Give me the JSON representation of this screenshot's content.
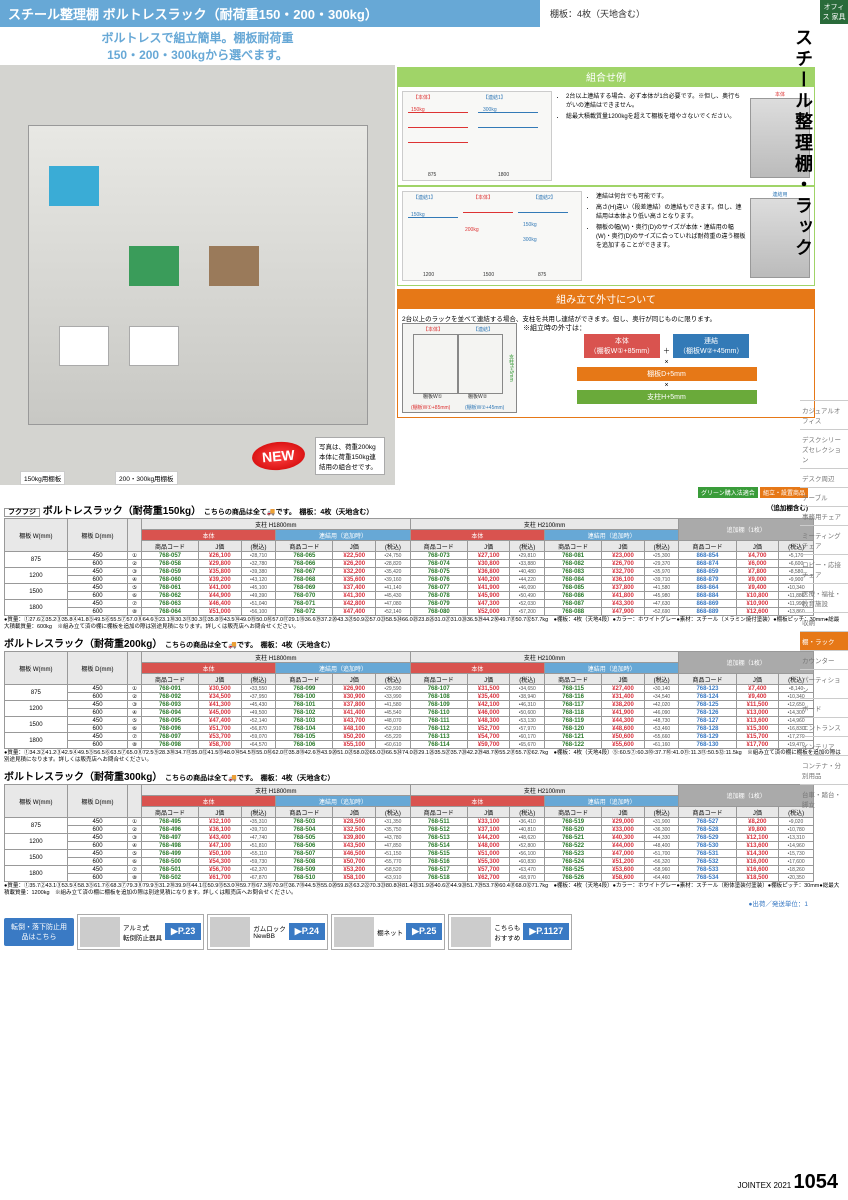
{
  "header": {
    "title": "スチール整理棚 ボルトレスラック（耐荷重150・200・300kg）",
    "shelf_note": "棚板：4枚（天地含む）",
    "subtitle1": "ボルトレスで組立簡単。棚板耐荷重",
    "subtitle2": "150・200・300kgから選べます。"
  },
  "side": {
    "office": "オフィス\n家具",
    "title": "スチール整理棚・ラック",
    "nav": [
      "カジュアルオフィス",
      "デスクシリーズセレクション",
      "デスク周辺",
      "テーブル",
      "事務用チェア",
      "ミーティングチェア",
      "ロビー・応接チェア",
      "医療・福祉・教育施設",
      "収納",
      "棚・ラック",
      "カウンター",
      "パーティション",
      "ボード",
      "エントランス",
      "インテリア",
      "コンテナ・分別用品",
      "台車・踏台・脚立"
    ]
  },
  "photo": {
    "pitch_label": "棚板ピッチ：30mm",
    "label150": "150kg用棚板",
    "label200": "200・300kg用棚板",
    "note": "写真は、荷重200kg本体に荷重150kg連結用の組合せです。",
    "new": "NEW"
  },
  "combo": {
    "header": "組合せ例",
    "body_label": "【本体】",
    "link_label": "【連結1】",
    "link2_label": "【連結2】",
    "load_labels": [
      "150kg",
      "300kg",
      "150kg",
      "200kg"
    ],
    "widths": [
      "875",
      "1200",
      "1500",
      "1800"
    ],
    "bullets": [
      "2台以上連結する場合、必ず本体が1台必要です。※但し、奥行ちがいの連結はできません。",
      "総最大積載質量1200kgを超えて棚板を増やさないでください。",
      "連結は何台でも可能です。",
      "高さ(H)違い（段差連結）の連結もできます。但し、連結用は本体より低い高さとなります。",
      "棚板の幅(W)・奥行(D)のサイズが本体・連結用の幅(W)・奥行(D)のサイズに合っていれば耐荷重の違う棚板を追加することができます。"
    ],
    "rack_labels": [
      "本体",
      "連結用"
    ]
  },
  "assembly": {
    "header": "組み立て外寸について",
    "intro": "2台以上のラックを並べて連結する場合、支柱を共用し連結ができます。但し、奥行が同じものに限ります。",
    "note": "※組立時の外寸は：",
    "red_tag": "本体\n（棚板W①+85mm）",
    "blue_tag": "連結\n（棚板W②+45mm）",
    "orange_tag": "棚板D+5mm",
    "green_tag": "支柱H+5mm",
    "plus": "＋",
    "times": "×",
    "diag_labels": [
      "支柱H+5mm",
      "棚板W①",
      "棚板W②",
      "棚板D+5mm",
      "(棚板W①+85mm)",
      "(棚板W②+45mm)"
    ]
  },
  "tables": [
    {
      "title": "ボルトレスラック（耐荷重150kg）",
      "brand": "フクフジ",
      "sub": "こちらの商品は全て🚚です。　棚板：4枚（天地含む）",
      "extra_note": "（追加棚含む)",
      "col_groups": [
        "支柱 H1800mm",
        "支柱 H2100mm",
        "追加棚（1枚）"
      ],
      "sub_groups": [
        "本体",
        "連結用（追加時）",
        "本体",
        "連結用（追加時）"
      ],
      "headers": [
        "棚板\nW(mm)",
        "棚板\nD(mm)",
        "",
        "商品コード",
        "J価",
        "(税込)",
        "商品コード",
        "J価",
        "(税込)",
        "商品コード",
        "J価",
        "(税込)",
        "商品コード",
        "J価",
        "(税込)",
        "商品コード",
        "J価",
        "(税込)"
      ],
      "rows": [
        [
          "875",
          "450",
          "①",
          "768-057",
          "¥26,100",
          "•28,710",
          "⑨",
          "768-065",
          "¥22,500",
          "•24,750",
          "⑰",
          "768-073",
          "¥27,100",
          "•29,810",
          "㉕",
          "768-081",
          "¥23,000",
          "•25,300",
          "868-854",
          "¥4,700",
          "•5,170"
        ],
        [
          "",
          "600",
          "②",
          "768-058",
          "¥29,800",
          "•32,780",
          "⑩",
          "768-066",
          "¥26,200",
          "•28,820",
          "⑱",
          "768-074",
          "¥30,800",
          "•33,880",
          "㉖",
          "768-082",
          "¥26,700",
          "•29,370",
          "868-874",
          "¥6,000",
          "•6,600"
        ],
        [
          "1200",
          "450",
          "③",
          "768-059",
          "¥35,800",
          "•39,380",
          "⑪",
          "768-067",
          "¥32,200",
          "•35,420",
          "⑲",
          "768-075",
          "¥36,800",
          "•40,480",
          "㉗",
          "768-083",
          "¥32,700",
          "•35,970",
          "868-859",
          "¥7,800",
          "•8,580"
        ],
        [
          "",
          "600",
          "④",
          "768-060",
          "¥39,200",
          "•43,120",
          "⑫",
          "768-068",
          "¥35,600",
          "•39,160",
          "⑳",
          "768-076",
          "¥40,200",
          "•44,220",
          "㉘",
          "768-084",
          "¥36,100",
          "•39,710",
          "868-879",
          "¥9,000",
          "•9,900"
        ],
        [
          "1500",
          "450",
          "⑤",
          "768-061",
          "¥41,000",
          "•45,100",
          "⑬",
          "768-069",
          "¥37,400",
          "•41,140",
          "㉑",
          "768-077",
          "¥41,900",
          "•46,090",
          "㉙",
          "768-085",
          "¥37,800",
          "•41,580",
          "868-864",
          "¥9,400",
          "•10,340"
        ],
        [
          "",
          "600",
          "⑥",
          "768-062",
          "¥44,900",
          "•49,390",
          "⑭",
          "768-070",
          "¥41,300",
          "•45,430",
          "㉒",
          "768-078",
          "¥45,900",
          "•50,490",
          "㉚",
          "768-086",
          "¥41,800",
          "•45,980",
          "868-884",
          "¥10,800",
          "•11,880"
        ],
        [
          "1800",
          "450",
          "⑦",
          "768-063",
          "¥46,400",
          "•51,040",
          "⑮",
          "768-071",
          "¥42,800",
          "•47,080",
          "㉓",
          "768-079",
          "¥47,300",
          "•52,030",
          "㉛",
          "768-087",
          "¥43,300",
          "•47,630",
          "868-869",
          "¥10,900",
          "•11,990"
        ],
        [
          "",
          "600",
          "⑧",
          "768-064",
          "¥51,000",
          "•56,100",
          "⑯",
          "768-072",
          "¥47,400",
          "•52,140",
          "㉔",
          "768-080",
          "¥52,000",
          "•57,200",
          "㉜",
          "768-088",
          "¥47,900",
          "•52,690",
          "868-889",
          "¥12,600",
          "•13,860"
        ]
      ],
      "notes": "●質量：①27.6②35.2③35.8④41.8⑤49.5⑥55.5⑦57.0⑧64.6⑨23.1⑩30.3⑪30.3⑫35.8⑬43.5⑭49.0⑮50.0⑯57.0⑰29.1⑱36.6⑲37.2⑳43.3㉑50.9㉒57.0㉓58.5㉔66.0㉕23.8㉖31.0㉗31.0㉘36.5㉙44.2㉚49.7㉛50.7㉜57.7kg　●棚板：4枚（天地4段）●カラー：ホワイトグレー●素材：スチール（メラミン焼付塗装）●棚板ピッチ：30mm●総最大積載質量：600kg　※組み立て済の棚に棚板を追加の際は別途見積になります。詳しくは販売店へお問合せください。"
    },
    {
      "title": "ボルトレスラック（耐荷重200kg）",
      "sub": "こちらの商品は全て🚚です。　棚板：4枚（天地含む）",
      "rows": [
        [
          "875",
          "450",
          "①",
          "768-091",
          "¥30,500",
          "•33,550",
          "⑨",
          "768-099",
          "¥26,900",
          "•29,590",
          "⑰",
          "768-107",
          "¥31,500",
          "•34,650",
          "㉕",
          "768-115",
          "¥27,400",
          "•30,140",
          "768-123",
          "¥7,400",
          "•8,140"
        ],
        [
          "",
          "600",
          "②",
          "768-092",
          "¥34,500",
          "•37,950",
          "⑩",
          "768-100",
          "¥30,900",
          "•33,990",
          "⑱",
          "768-108",
          "¥35,400",
          "•38,940",
          "㉖",
          "768-116",
          "¥31,400",
          "•34,540",
          "768-124",
          "¥9,400",
          "•10,340"
        ],
        [
          "1200",
          "450",
          "③",
          "768-093",
          "¥41,300",
          "•45,430",
          "⑪",
          "768-101",
          "¥37,800",
          "•41,580",
          "⑲",
          "768-109",
          "¥42,100",
          "•46,310",
          "㉗",
          "768-117",
          "¥38,200",
          "•42,020",
          "768-125",
          "¥11,500",
          "•12,650"
        ],
        [
          "",
          "600",
          "④",
          "768-094",
          "¥45,000",
          "•49,500",
          "⑫",
          "768-102",
          "¥41,400",
          "•45,540",
          "⑳",
          "768-110",
          "¥46,000",
          "•50,600",
          "㉘",
          "768-118",
          "¥41,900",
          "•46,090",
          "768-126",
          "¥13,000",
          "•14,300"
        ],
        [
          "1500",
          "450",
          "⑤",
          "768-095",
          "¥47,400",
          "•52,140",
          "⑬",
          "768-103",
          "¥43,700",
          "•48,070",
          "㉑",
          "768-111",
          "¥48,300",
          "•53,130",
          "㉙",
          "768-119",
          "¥44,300",
          "•48,730",
          "768-127",
          "¥13,600",
          "•14,960"
        ],
        [
          "",
          "600",
          "⑥",
          "768-096",
          "¥51,700",
          "•56,870",
          "⑭",
          "768-104",
          "¥48,100",
          "•52,910",
          "㉒",
          "768-112",
          "¥52,700",
          "•57,970",
          "㉚",
          "768-120",
          "¥48,600",
          "•53,460",
          "768-128",
          "¥15,300",
          "•16,830"
        ],
        [
          "1800",
          "450",
          "⑦",
          "768-097",
          "¥53,700",
          "•59,070",
          "⑮",
          "768-105",
          "¥50,200",
          "•55,220",
          "㉓",
          "768-113",
          "¥54,700",
          "•60,170",
          "㉛",
          "768-121",
          "¥50,600",
          "•55,660",
          "768-129",
          "¥15,700",
          "•17,270"
        ],
        [
          "",
          "600",
          "⑧",
          "768-098",
          "¥58,700",
          "•64,570",
          "⑯",
          "768-106",
          "¥55,100",
          "•60,610",
          "㉔",
          "768-114",
          "¥59,700",
          "•65,670",
          "㉜",
          "768-122",
          "¥55,600",
          "•61,160",
          "768-130",
          "¥17,700",
          "•19,470"
        ]
      ],
      "notes": "●質量：①34.3②41.2③42.5④49.5⑤56.5⑥63.5⑦65.0⑧72.5⑨28.3⑩34.7⑪35.0⑫41.5⑬48.0⑭54.5⑮55.0⑯62.0⑰35.8⑱42.6⑲43.9⑳51.0㉑58.0㉒65.0㉓66.5㉔74.0㉕29.1㉖35.5㉗35.7㉘42.2㉙48.7㉚55.2㉛55.7㉜62.7kg　●棚板：4枚（天地4段）⑤:60.5⑦:60.3⑩:37.7⑩:41.0⑪:11.3⑪:50.5⑫:11.5kg　※組み立て済の棚に棚板を追加の際は別途見積になります。詳しくは販売店へお問合せください。"
    },
    {
      "title": "ボルトレスラック（耐荷重300kg）",
      "sub": "こちらの商品は全て🚚です。　棚板：4枚（天地含む）",
      "rows": [
        [
          "875",
          "450",
          "①",
          "768-495",
          "¥32,100",
          "•35,310",
          "⑨",
          "768-503",
          "¥28,500",
          "•31,350",
          "⑰",
          "768-511",
          "¥33,100",
          "•36,410",
          "㉕",
          "768-519",
          "¥29,000",
          "•31,900",
          "768-527",
          "¥8,200",
          "•9,020"
        ],
        [
          "",
          "600",
          "②",
          "768-496",
          "¥36,100",
          "•39,710",
          "⑩",
          "768-504",
          "¥32,500",
          "•35,750",
          "⑱",
          "768-512",
          "¥37,100",
          "•40,810",
          "㉖",
          "768-520",
          "¥33,000",
          "•36,300",
          "768-528",
          "¥9,800",
          "•10,780"
        ],
        [
          "1200",
          "450",
          "③",
          "768-497",
          "¥43,400",
          "•47,740",
          "⑪",
          "768-505",
          "¥39,800",
          "•43,780",
          "⑲",
          "768-513",
          "¥44,200",
          "•48,620",
          "㉗",
          "768-521",
          "¥40,300",
          "•44,330",
          "768-529",
          "¥12,100",
          "•13,310"
        ],
        [
          "",
          "600",
          "④",
          "768-498",
          "¥47,100",
          "•51,810",
          "⑫",
          "768-506",
          "¥43,500",
          "•47,850",
          "⑳",
          "768-514",
          "¥48,000",
          "•52,800",
          "㉘",
          "768-522",
          "¥44,000",
          "•48,400",
          "768-530",
          "¥13,600",
          "•14,960"
        ],
        [
          "1500",
          "450",
          "⑤",
          "768-499",
          "¥50,100",
          "•55,110",
          "⑬",
          "768-507",
          "¥46,500",
          "•51,150",
          "㉑",
          "768-515",
          "¥51,000",
          "•56,100",
          "㉙",
          "768-523",
          "¥47,000",
          "•51,700",
          "768-531",
          "¥14,300",
          "•15,730"
        ],
        [
          "",
          "600",
          "⑥",
          "768-500",
          "¥54,300",
          "•59,730",
          "⑭",
          "768-508",
          "¥50,700",
          "•55,770",
          "㉒",
          "768-516",
          "¥55,300",
          "•60,830",
          "㉚",
          "768-524",
          "¥51,200",
          "•56,320",
          "768-532",
          "¥16,000",
          "•17,600"
        ],
        [
          "1800",
          "450",
          "⑦",
          "768-501",
          "¥56,700",
          "•62,370",
          "⑮",
          "768-509",
          "¥53,200",
          "•58,520",
          "㉓",
          "768-517",
          "¥57,700",
          "•63,470",
          "㉛",
          "768-525",
          "¥53,600",
          "•58,960",
          "768-533",
          "¥16,600",
          "•18,260"
        ],
        [
          "",
          "600",
          "⑧",
          "768-502",
          "¥61,700",
          "•67,870",
          "⑯",
          "768-510",
          "¥58,100",
          "•63,910",
          "㉔",
          "768-518",
          "¥62,700",
          "•68,970",
          "㉜",
          "768-526",
          "¥58,600",
          "•64,460",
          "768-534",
          "¥18,500",
          "•20,350"
        ]
      ],
      "notes": "●質量：①35.7②43.1③53.5④58.3⑤61.7⑥68.3⑦79.3⑧79.9⑨31.2⑩39.9⑪44.1⑫50.9⑬53.0⑭59.7⑮67.3⑯70.9⑰36.7⑱44.5⑲55.0⑳59.8㉑63.2㉒70.3㉓80.8㉔81.4㉕31.9㉖40.6㉗44.9㉘51.7㉙53.7㉚60.4㉛68.0㉜71.7kg　●棚板：4枚（天地4段）●カラー：ホワイトグレー●素材：スチール（粉体塗装付塗装）●棚板ピッチ：30mm●総最大積載質量：1200kg　※組み立て済の棚に棚板を追加の際は別途見積になります。詳しくは販売店へお問合せください。"
    }
  ],
  "shipping": "●出荷／発送単位：1",
  "badges": {
    "green": "グリーン購入法適合",
    "orange": "組立・設置商品"
  },
  "promo": {
    "tag": "転倒・落下防止用品はこちら",
    "items": [
      {
        "name": "アルミ式\n転倒防止器具",
        "page": "P.23"
      },
      {
        "name": "ガムロック\nNewBB",
        "page": "P.24"
      },
      {
        "name": "棚ネット",
        "page": "P.25"
      },
      {
        "name": "こちらも\nおすすめ",
        "page": "P.1127"
      }
    ]
  },
  "footer": {
    "year": "JOINTEX 2021",
    "page": "1054"
  },
  "colors": {
    "accent_blue": "#67a8d6",
    "accent_green": "#2a7a2a",
    "price_red": "#d9333f",
    "header_red": "#d9534f",
    "header_orange": "#e67817"
  }
}
